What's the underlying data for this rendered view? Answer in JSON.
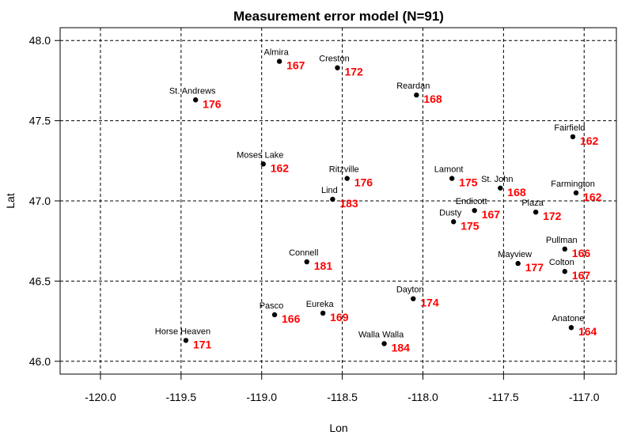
{
  "chart_data": {
    "type": "scatter",
    "title": "Measurement error model (N=91)",
    "xlabel": "Lon",
    "ylabel": "Lat",
    "xlim": [
      -120.25,
      -116.8
    ],
    "ylim": [
      45.92,
      48.08
    ],
    "xticks": [
      -120.0,
      -119.5,
      -119.0,
      -118.5,
      -118.0,
      -117.5,
      -117.0
    ],
    "xtick_labels": [
      "-120.0",
      "-119.5",
      "-119.0",
      "-118.5",
      "-118.0",
      "-117.5",
      "-117.0"
    ],
    "yticks": [
      46.0,
      46.5,
      47.0,
      47.5,
      48.0
    ],
    "ytick_labels": [
      "46.0",
      "46.5",
      "47.0",
      "47.5",
      "48.0"
    ],
    "grid": "dashed",
    "point_color": "#000000",
    "value_color": "#ff0000",
    "points": [
      {
        "name": "Almira",
        "lon": -118.89,
        "lat": 47.87,
        "value": "167"
      },
      {
        "name": "Creston",
        "lon": -118.53,
        "lat": 47.83,
        "value": "172"
      },
      {
        "name": "St. Andrews",
        "lon": -119.41,
        "lat": 47.63,
        "value": "176"
      },
      {
        "name": "Reardan",
        "lon": -118.04,
        "lat": 47.66,
        "value": "168"
      },
      {
        "name": "Fairfield",
        "lon": -117.07,
        "lat": 47.4,
        "value": "162"
      },
      {
        "name": "Moses Lake",
        "lon": -118.99,
        "lat": 47.23,
        "value": "162"
      },
      {
        "name": "Ritzville",
        "lon": -118.47,
        "lat": 47.14,
        "value": "176"
      },
      {
        "name": "Lamont",
        "lon": -117.82,
        "lat": 47.14,
        "value": "175"
      },
      {
        "name": "St. John",
        "lon": -117.52,
        "lat": 47.08,
        "value": "168"
      },
      {
        "name": "Farmington",
        "lon": -117.05,
        "lat": 47.05,
        "value": "162"
      },
      {
        "name": "Lind",
        "lon": -118.56,
        "lat": 47.01,
        "value": "183"
      },
      {
        "name": "Endicott",
        "lon": -117.68,
        "lat": 46.94,
        "value": "167"
      },
      {
        "name": "Plaza",
        "lon": -117.3,
        "lat": 46.93,
        "value": "172"
      },
      {
        "name": "Dusty",
        "lon": -117.81,
        "lat": 46.87,
        "value": "175"
      },
      {
        "name": "Pullman",
        "lon": -117.12,
        "lat": 46.7,
        "value": "166"
      },
      {
        "name": "Connell",
        "lon": -118.72,
        "lat": 46.62,
        "value": "181"
      },
      {
        "name": "Mayview",
        "lon": -117.41,
        "lat": 46.61,
        "value": "177"
      },
      {
        "name": "Colton",
        "lon": -117.12,
        "lat": 46.56,
        "value": "167"
      },
      {
        "name": "Dayton",
        "lon": -118.06,
        "lat": 46.39,
        "value": "174"
      },
      {
        "name": "Pasco",
        "lon": -118.92,
        "lat": 46.29,
        "value": "166"
      },
      {
        "name": "Eureka",
        "lon": -118.62,
        "lat": 46.3,
        "value": "169"
      },
      {
        "name": "Anatone",
        "lon": -117.08,
        "lat": 46.21,
        "value": "164"
      },
      {
        "name": "Horse Heaven",
        "lon": -119.47,
        "lat": 46.13,
        "value": "171"
      },
      {
        "name": "Walla Walla",
        "lon": -118.24,
        "lat": 46.11,
        "value": "184"
      }
    ]
  }
}
